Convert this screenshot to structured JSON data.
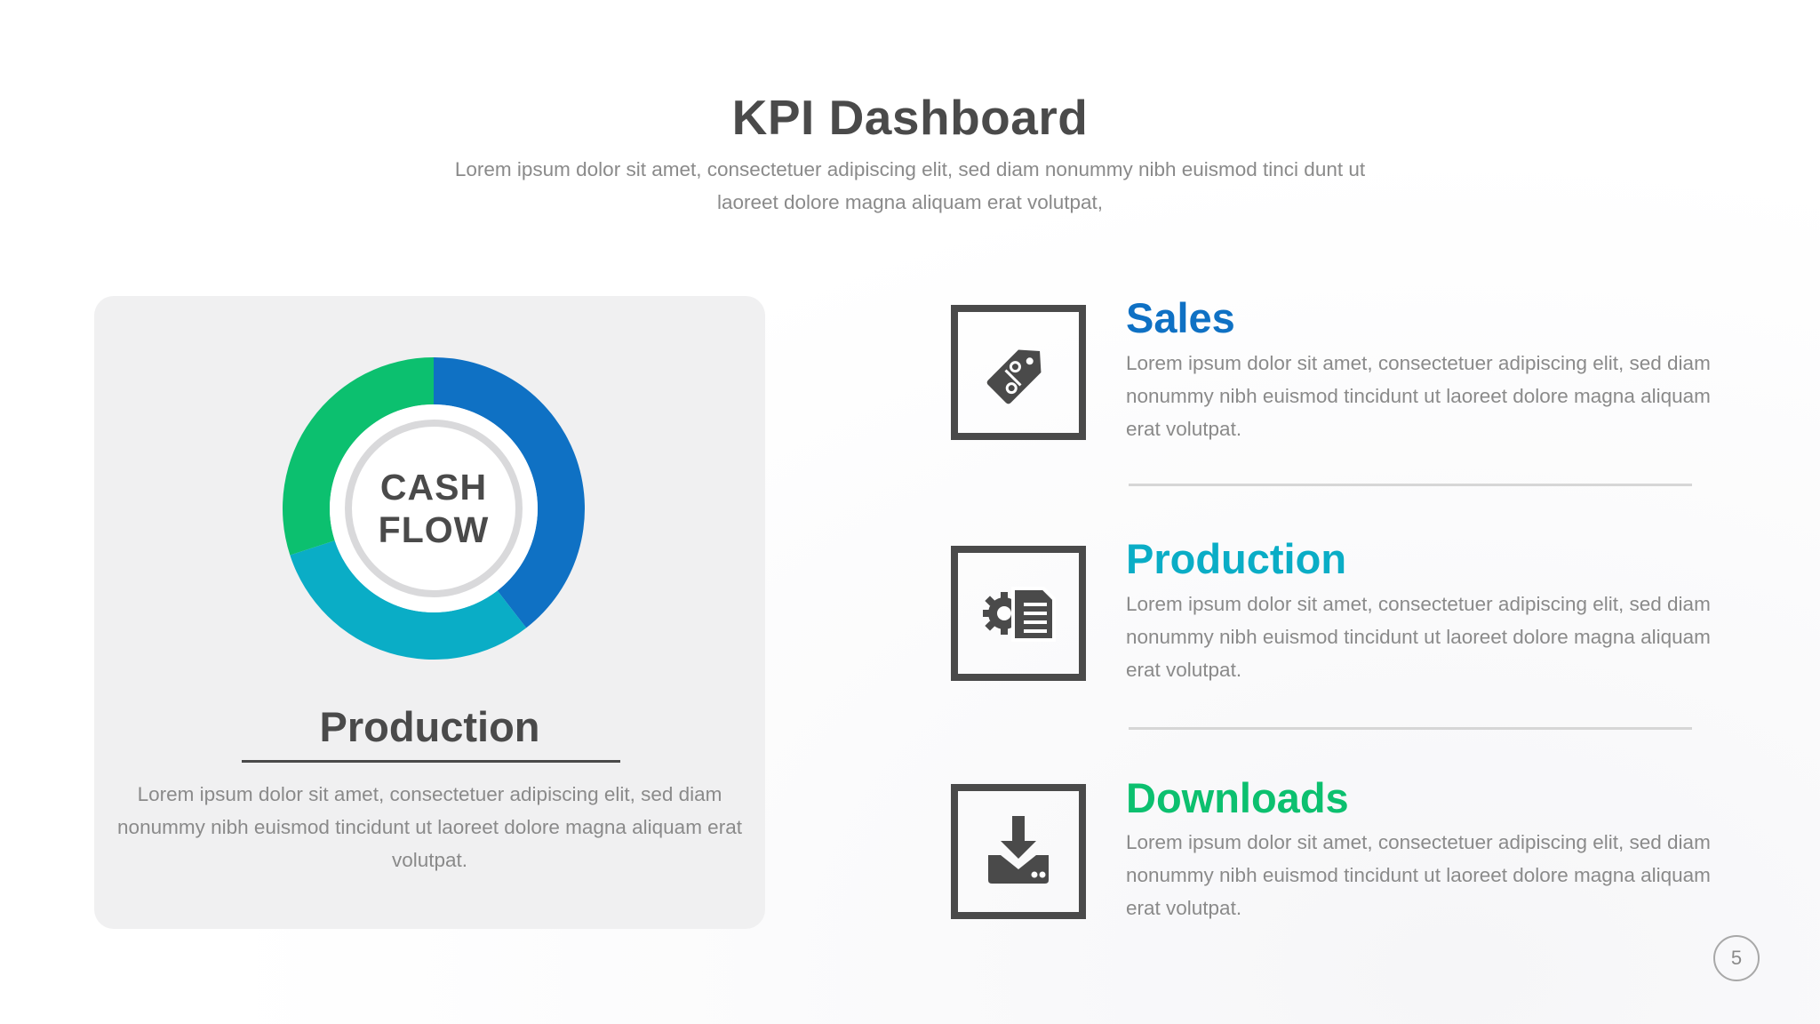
{
  "slide": {
    "title": "KPI Dashboard",
    "subtitle": "Lorem ipsum dolor sit amet, consectetuer adipiscing elit, sed diam nonummy nibh euismod tinci dunt ut laoreet dolore magna aliquam erat volutpat,",
    "page_number": "5"
  },
  "card": {
    "donut_line1": "CASH",
    "donut_line2": "FLOW",
    "heading": "Production",
    "text": "Lorem ipsum dolor sit amet, consectetuer adipiscing elit, sed diam nonummy nibh euismod tincidunt ut laoreet dolore magna aliquam erat volutpat."
  },
  "donut": {
    "segments": [
      {
        "share": 0.395,
        "color": "#0f71c4"
      },
      {
        "share": 0.305,
        "color": "#0aadc6"
      },
      {
        "share": 0.3,
        "color": "#0cc06f"
      }
    ],
    "ring_color": "#d9d9db",
    "center_color": "#ffffff"
  },
  "items": [
    {
      "title": "Sales",
      "color": "#0f71c4",
      "icon": "price-tag-icon",
      "text": "Lorem ipsum dolor sit amet, consectetuer adipiscing elit, sed diam nonummy nibh euismod tincidunt ut laoreet dolore magna aliquam erat volutpat."
    },
    {
      "title": "Production",
      "color": "#0aadc6",
      "icon": "gear-document-icon",
      "text": "Lorem ipsum dolor sit amet, consectetuer adipiscing elit, sed diam nonummy nibh euismod tincidunt ut laoreet dolore magna aliquam erat volutpat."
    },
    {
      "title": "Downloads",
      "color": "#0cc06f",
      "icon": "download-tray-icon",
      "text": "Lorem ipsum dolor sit amet, consectetuer adipiscing elit, sed diam nonummy nibh euismod tincidunt ut laoreet dolore magna aliquam erat volutpat."
    }
  ],
  "colors": {
    "text_dark": "#4a4a4a",
    "text_muted": "#8a8a8a",
    "card_bg": "#f0f0f1"
  }
}
